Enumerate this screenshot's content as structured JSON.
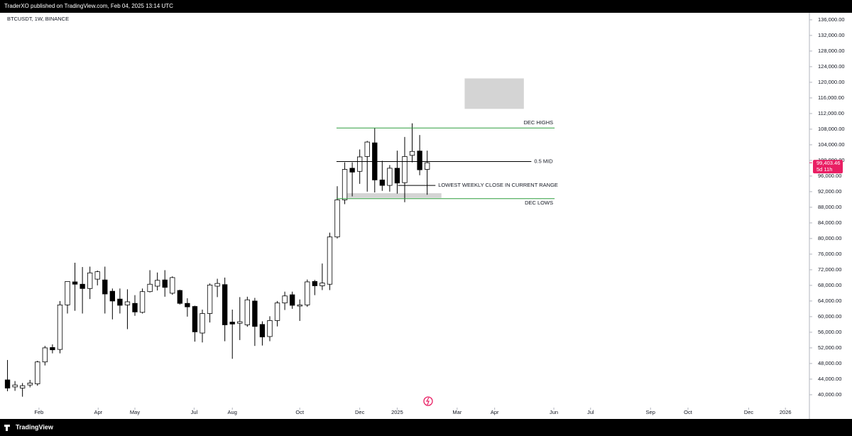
{
  "header": {
    "publisher": "TraderXO published on TradingView.com, Feb 04, 2025 13:14 UTC",
    "symbol": "BTCUSDT, 1W, BINANCE"
  },
  "footer": {
    "brand": "TradingView"
  },
  "chart_data": {
    "type": "candlestick",
    "x": [
      0,
      1,
      2,
      3,
      4,
      5,
      6,
      7,
      8,
      9,
      10,
      11,
      12,
      13,
      14,
      15,
      16,
      17,
      18,
      19,
      20,
      21,
      22,
      23,
      24,
      25,
      26,
      27,
      28,
      29,
      30,
      31,
      32,
      33,
      34,
      35,
      36,
      37,
      38,
      39,
      40,
      41,
      42,
      43,
      44,
      45,
      46,
      47,
      48,
      49,
      50,
      51,
      52,
      53,
      54,
      55,
      56
    ],
    "open": [
      43800,
      42000,
      41700,
      42500,
      42800,
      48400,
      52100,
      51600,
      63000,
      68900,
      68300,
      67200,
      69600,
      69400,
      66500,
      64500,
      63000,
      63400,
      61100,
      66400,
      67800,
      69400,
      66000,
      66700,
      63400,
      62600,
      55800,
      60800,
      67800,
      68200,
      58600,
      58300,
      57900,
      64000,
      58000,
      54900,
      59000,
      63500,
      65600,
      62700,
      63000,
      69000,
      67900,
      68300,
      80400,
      89900,
      98000,
      97200,
      101000,
      104500,
      95000,
      93600,
      98000,
      94300,
      101300,
      102400,
      97700
    ],
    "high": [
      48900,
      43500,
      43000,
      43800,
      48700,
      52500,
      52900,
      64000,
      69000,
      73800,
      72700,
      72800,
      71800,
      72800,
      67200,
      67200,
      67000,
      65500,
      67200,
      71900,
      71300,
      71900,
      70300,
      66900,
      64700,
      62800,
      61800,
      68500,
      69700,
      70000,
      61800,
      65000,
      65100,
      64800,
      58800,
      60100,
      64000,
      66400,
      66400,
      64400,
      69500,
      69400,
      73600,
      81500,
      93400,
      99500,
      99500,
      102800,
      105000,
      108300,
      99900,
      98800,
      102500,
      106000,
      109500,
      106500,
      102500
    ],
    "low": [
      40900,
      41000,
      39500,
      41900,
      42300,
      47500,
      50600,
      50600,
      60800,
      61500,
      60800,
      64500,
      68000,
      60800,
      59300,
      60800,
      56800,
      60200,
      60800,
      66200,
      66700,
      65100,
      65600,
      63100,
      60000,
      53600,
      53400,
      58500,
      65000,
      53700,
      49200,
      54000,
      57400,
      52500,
      52600,
      53700,
      57500,
      61700,
      62000,
      58900,
      62500,
      65500,
      66800,
      66800,
      80000,
      88800,
      90800,
      94000,
      92000,
      91800,
      92200,
      92000,
      91500,
      89300,
      99500,
      96200,
      91200
    ],
    "close": [
      41700,
      42500,
      42300,
      43000,
      48400,
      52000,
      51500,
      63000,
      69000,
      68300,
      67200,
      71200,
      71500,
      65800,
      64000,
      62900,
      63800,
      61200,
      66400,
      68300,
      69300,
      67500,
      70000,
      63400,
      62500,
      56100,
      60800,
      68100,
      68500,
      57900,
      58100,
      58700,
      64300,
      57500,
      54800,
      59000,
      63500,
      65300,
      62900,
      63000,
      68900,
      67900,
      68600,
      80400,
      89900,
      97700,
      97000,
      100900,
      104700,
      95000,
      93600,
      98000,
      94200,
      101000,
      102300,
      97600,
      99403.46
    ],
    "up_color": "#ffffff",
    "down_color": "#000000",
    "xlim": [
      -1,
      107
    ],
    "xticks": [
      {
        "value": 4.2,
        "label": "Feb"
      },
      {
        "value": 12.1,
        "label": "Apr"
      },
      {
        "value": 17,
        "label": "May"
      },
      {
        "value": 24.9,
        "label": "Jul"
      },
      {
        "value": 30,
        "label": "Aug"
      },
      {
        "value": 39,
        "label": "Oct"
      },
      {
        "value": 47,
        "label": "Dec"
      },
      {
        "value": 52,
        "label": "2025"
      },
      {
        "value": 60,
        "label": "Mar"
      },
      {
        "value": 65,
        "label": "Apr"
      },
      {
        "value": 72.9,
        "label": "Jun"
      },
      {
        "value": 77.8,
        "label": "Jul"
      },
      {
        "value": 85.8,
        "label": "Sep"
      },
      {
        "value": 90.8,
        "label": "Oct"
      },
      {
        "value": 98.9,
        "label": "Dec"
      },
      {
        "value": 103.8,
        "label": "2026"
      }
    ],
    "ylim": [
      33800,
      137800
    ],
    "yticks": [
      {
        "value": 40000,
        "label": "40,000.00"
      },
      {
        "value": 44000,
        "label": "44,000.00"
      },
      {
        "value": 48000,
        "label": "48,000.00"
      },
      {
        "value": 52000,
        "label": "52,000.00"
      },
      {
        "value": 56000,
        "label": "56,000.00"
      },
      {
        "value": 60000,
        "label": "60,000.00"
      },
      {
        "value": 64000,
        "label": "64,000.00"
      },
      {
        "value": 68000,
        "label": "68,000.00"
      },
      {
        "value": 72000,
        "label": "72,000.00"
      },
      {
        "value": 76000,
        "label": "76,000.00"
      },
      {
        "value": 80000,
        "label": "80,000.00"
      },
      {
        "value": 84000,
        "label": "84,000.00"
      },
      {
        "value": 88000,
        "label": "88,000.00"
      },
      {
        "value": 92000,
        "label": "92,000.00"
      },
      {
        "value": 96000,
        "label": "96,000.00"
      },
      {
        "value": 100000,
        "label": "100,000.00"
      },
      {
        "value": 104000,
        "label": "104,000.00"
      },
      {
        "value": 108000,
        "label": "108,000.00"
      },
      {
        "value": 112000,
        "label": "112,000.00"
      },
      {
        "value": 116000,
        "label": "116,000.00"
      },
      {
        "value": 120000,
        "label": "120,000.00"
      },
      {
        "value": 124000,
        "label": "124,000.00"
      },
      {
        "value": 128000,
        "label": "128,000.00"
      },
      {
        "value": 132000,
        "label": "132,000.00"
      },
      {
        "value": 136000,
        "label": "136,000.00"
      }
    ],
    "levels": [
      {
        "label": "DEC HIGHS",
        "value": 108300,
        "x_start": 43.9,
        "x_end": 73,
        "color": "#2e9e3e",
        "label_side": "above"
      },
      {
        "label": "0.5 MID",
        "value": 99700,
        "x_start": 43.9,
        "x_end": 69.9,
        "color": "#000000",
        "label_side": "right"
      },
      {
        "label": "LOWEST WEEKLY CLOSE IN CURRENT RANGE",
        "value": 93600,
        "x_start": 52.1,
        "x_end": 57.1,
        "color": "#000000",
        "label_side": "right"
      },
      {
        "label": "DEC LOWS",
        "value": 90200,
        "x_start": 43.9,
        "x_end": 73,
        "color": "#2e9e3e",
        "label_side": "below"
      }
    ],
    "zones": [
      {
        "low": 90400,
        "high": 91600,
        "x_start": 45.3,
        "x_end": 57.9,
        "color": "#d4d4d4"
      },
      {
        "low": 113200,
        "high": 121000,
        "x_start": 61,
        "x_end": 68.9,
        "color": "#d4d4d4"
      }
    ],
    "last_price": {
      "value": 99403.46,
      "label": "99,403.46",
      "countdown": "5d 11h",
      "color": "#e91e63"
    }
  }
}
